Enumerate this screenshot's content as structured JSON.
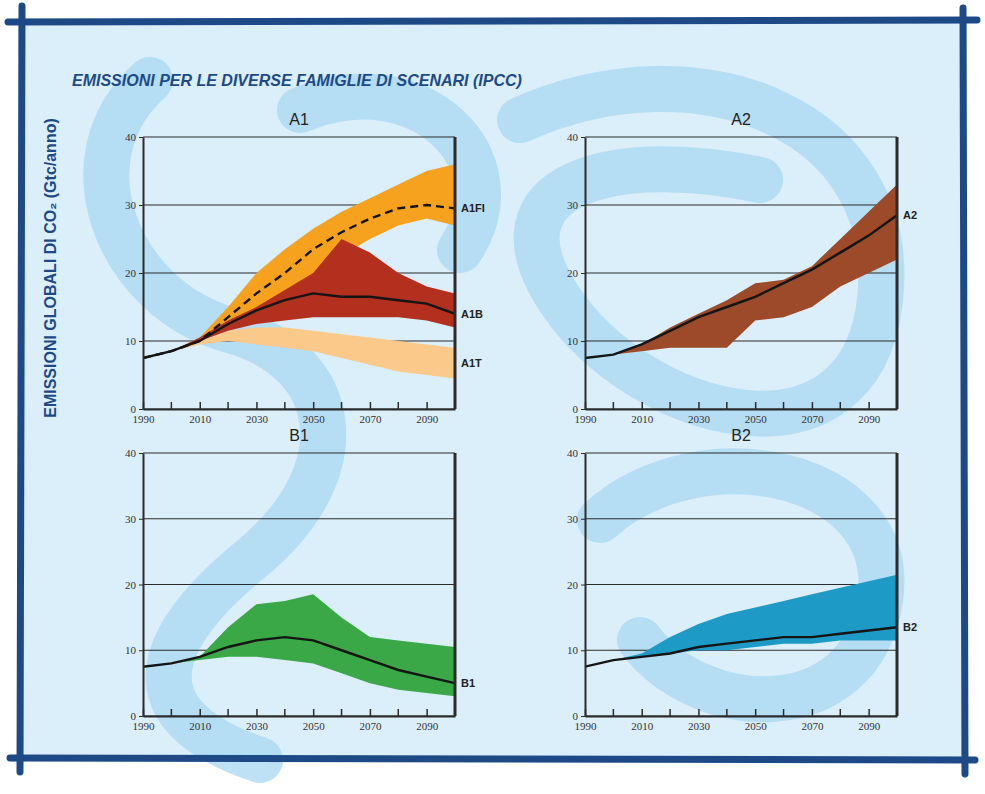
{
  "title": "EMISSIONI PER LE DIVERSE FAMIGLIE DI SCENARI (IPCC)",
  "y_label": "EMISSIONI GLOBALI DI CO₂ (Gtc/anno)",
  "chart_data": [
    {
      "type": "line",
      "title": "A1",
      "x": [
        1990,
        2000,
        2010,
        2020,
        2030,
        2040,
        2050,
        2060,
        2070,
        2080,
        2090,
        2100
      ],
      "xlim": [
        1990,
        2100
      ],
      "xticks": [
        1990,
        2010,
        2030,
        2050,
        2070,
        2090
      ],
      "ylim": [
        0,
        40
      ],
      "yticks": [
        0,
        10,
        20,
        30,
        40
      ],
      "grid": true,
      "series": [
        {
          "name": "A1T",
          "color": "#fbc98a",
          "upper": [
            7.5,
            8.5,
            10,
            11.5,
            12,
            12,
            11.5,
            11,
            10.5,
            10,
            9.5,
            9
          ],
          "lower": [
            7.5,
            8.5,
            9.5,
            10,
            9.5,
            9,
            8.5,
            7.5,
            6.5,
            5.5,
            5,
            4.5
          ]
        },
        {
          "name": "A1FI",
          "color": "#f6a21e",
          "line_style": "dashed",
          "values": [
            7.5,
            8.5,
            10,
            13.5,
            17,
            20,
            23.5,
            26,
            28,
            29.5,
            30,
            29.5
          ],
          "upper": [
            7.5,
            8.5,
            10.5,
            15,
            20,
            23.5,
            26.5,
            29,
            31,
            33,
            35,
            36
          ],
          "lower": [
            7.5,
            8.5,
            10,
            12.5,
            14,
            16,
            19,
            22.5,
            25,
            27,
            28,
            27
          ]
        },
        {
          "name": "A1B",
          "color": "#b3301f",
          "line_style": "solid",
          "values": [
            7.5,
            8.5,
            10,
            12.5,
            14.5,
            16,
            17,
            16.5,
            16.5,
            16,
            15.5,
            14
          ],
          "upper": [
            7.5,
            8.5,
            10.5,
            13,
            15,
            17.5,
            20,
            25,
            23,
            20,
            18,
            17
          ],
          "lower": [
            7.5,
            8.5,
            10,
            11.5,
            12.5,
            13,
            13.5,
            13.5,
            13.5,
            13.5,
            13,
            12
          ]
        }
      ]
    },
    {
      "type": "line",
      "title": "A2",
      "x": [
        1990,
        2000,
        2010,
        2020,
        2030,
        2040,
        2050,
        2060,
        2070,
        2080,
        2090,
        2100
      ],
      "xlim": [
        1990,
        2100
      ],
      "xticks": [
        1990,
        2010,
        2030,
        2050,
        2070,
        2090
      ],
      "ylim": [
        0,
        40
      ],
      "yticks": [
        0,
        10,
        20,
        30,
        40
      ],
      "grid": true,
      "series": [
        {
          "name": "A2",
          "color": "#9c4a2a",
          "line_style": "solid",
          "values": [
            7.5,
            8,
            9.5,
            11.5,
            13.5,
            15,
            16.5,
            18.5,
            20.5,
            23,
            25.5,
            28.5
          ],
          "upper": [
            7.5,
            8,
            9.5,
            12,
            14,
            16,
            18.5,
            19,
            21,
            25,
            29,
            33
          ],
          "lower": [
            7.5,
            8,
            8.5,
            9,
            9,
            9,
            13,
            13.5,
            15,
            18,
            20,
            22
          ]
        }
      ]
    },
    {
      "type": "line",
      "title": "B1",
      "x": [
        1990,
        2000,
        2010,
        2020,
        2030,
        2040,
        2050,
        2060,
        2070,
        2080,
        2090,
        2100
      ],
      "xlim": [
        1990,
        2100
      ],
      "xticks": [
        1990,
        2010,
        2030,
        2050,
        2070,
        2090
      ],
      "ylim": [
        0,
        40
      ],
      "yticks": [
        0,
        10,
        20,
        30,
        40
      ],
      "grid": true,
      "series": [
        {
          "name": "B1",
          "color": "#3aa846",
          "line_style": "solid",
          "values": [
            7.5,
            8,
            9,
            10.5,
            11.5,
            12,
            11.5,
            10,
            8.5,
            7,
            6,
            5
          ],
          "upper": [
            7.5,
            8,
            9,
            13.5,
            17,
            17.5,
            18.5,
            15,
            12,
            11.5,
            11,
            10.5
          ],
          "lower": [
            7.5,
            8,
            8.5,
            9,
            9,
            8.5,
            8,
            6.5,
            5,
            4,
            3.5,
            3
          ]
        }
      ]
    },
    {
      "type": "line",
      "title": "B2",
      "x": [
        1990,
        2000,
        2010,
        2020,
        2030,
        2040,
        2050,
        2060,
        2070,
        2080,
        2090,
        2100
      ],
      "xlim": [
        1990,
        2100
      ],
      "xticks": [
        1990,
        2010,
        2030,
        2050,
        2070,
        2090
      ],
      "ylim": [
        0,
        40
      ],
      "yticks": [
        0,
        10,
        20,
        30,
        40
      ],
      "grid": true,
      "series": [
        {
          "name": "B2",
          "color": "#1e9ac6",
          "line_style": "solid",
          "values": [
            7.5,
            8.5,
            9,
            9.5,
            10.5,
            11,
            11.5,
            12,
            12,
            12.5,
            13,
            13.5
          ],
          "upper": [
            7.5,
            8.5,
            9.5,
            12,
            14,
            15.5,
            16.5,
            17.5,
            18.5,
            19.5,
            20.5,
            21.5
          ],
          "lower": [
            7.5,
            8.5,
            9,
            9.5,
            10,
            10,
            10.5,
            11,
            11,
            11.5,
            11.5,
            11.5
          ]
        }
      ]
    }
  ]
}
